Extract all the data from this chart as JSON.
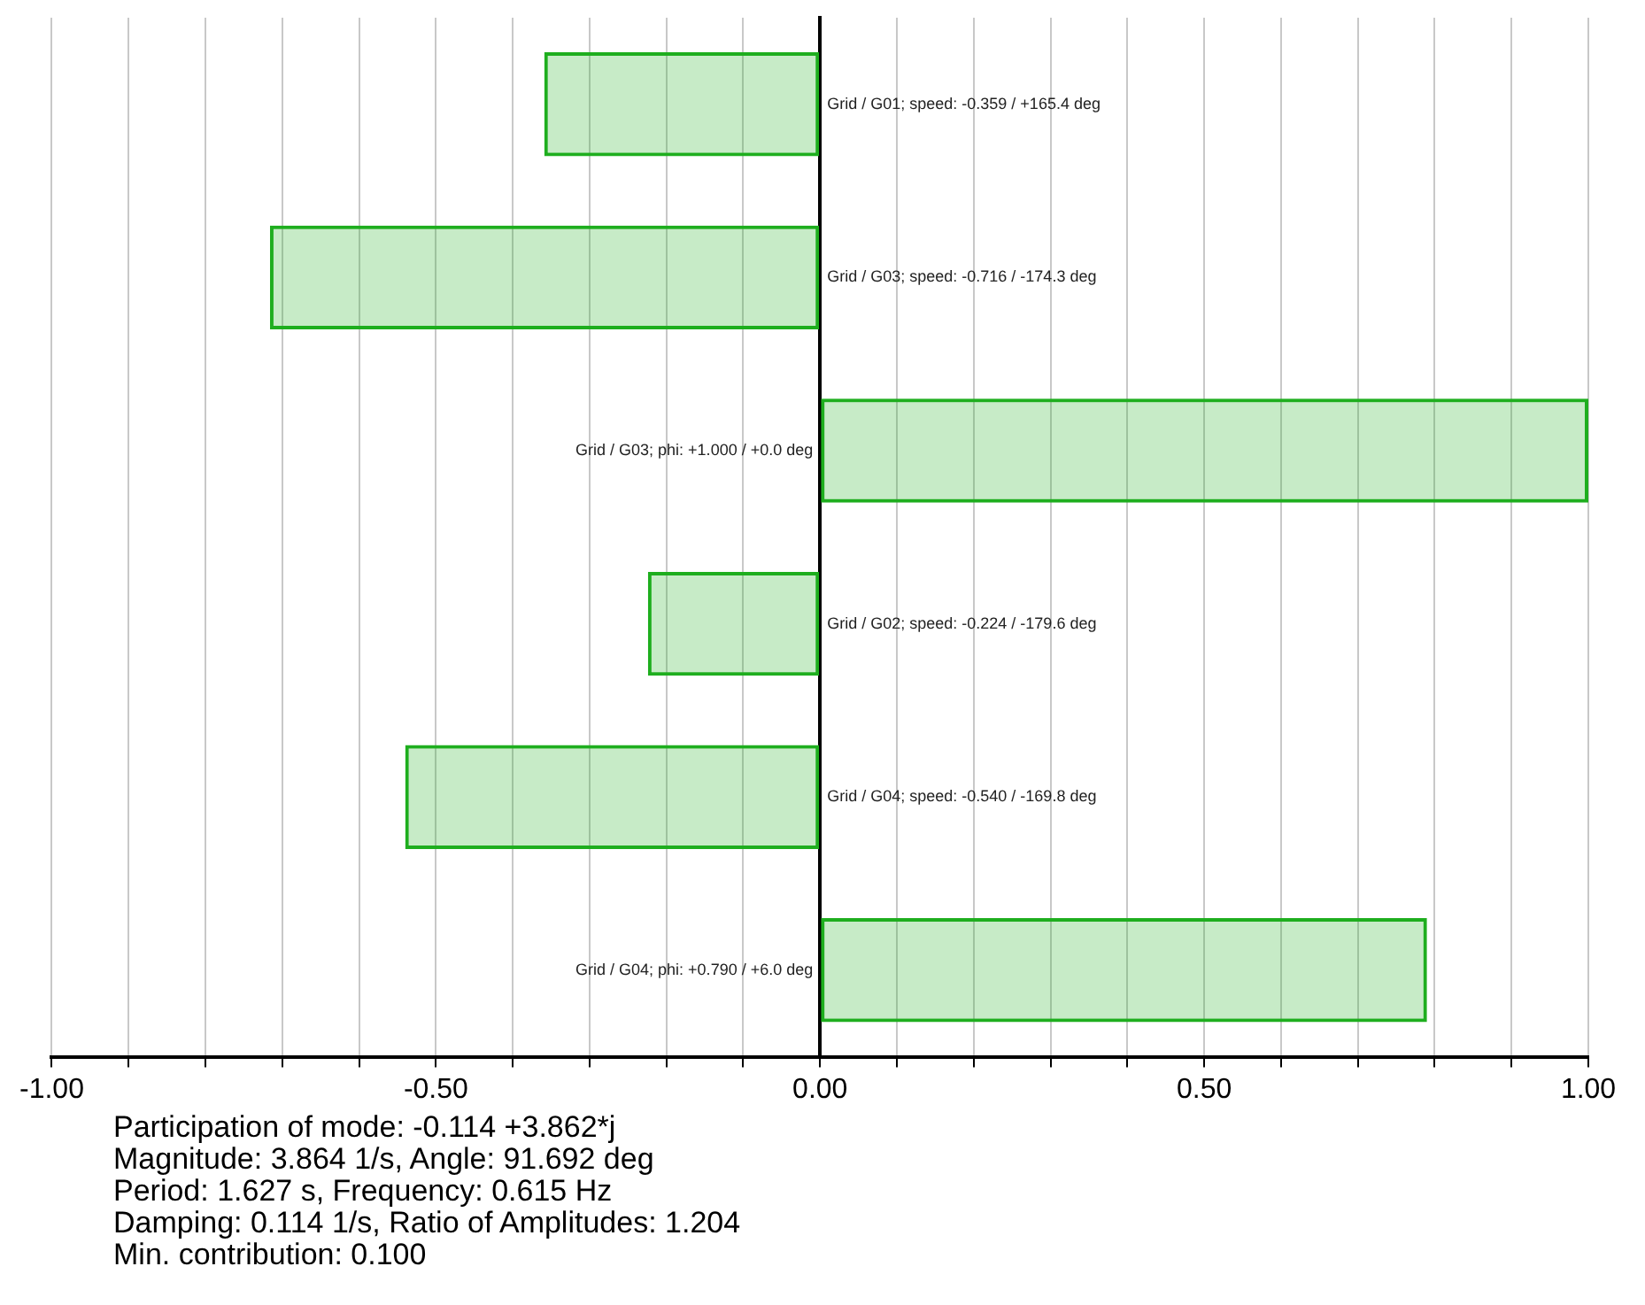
{
  "chart_data": {
    "type": "bar",
    "orientation": "horizontal",
    "categories": [
      "Grid / G01; speed: -0.359 / +165.4 deg",
      "Grid / G03; speed: -0.716 / -174.3 deg",
      "Grid / G03; phi: +1.000 / +0.0 deg",
      "Grid / G02; speed: -0.224 / -179.6 deg",
      "Grid / G04; speed: -0.540 / -169.8 deg",
      "Grid / G04; phi: +0.790 / +6.0 deg"
    ],
    "values": [
      -0.359,
      -0.716,
      1.0,
      -0.224,
      -0.54,
      0.79
    ],
    "color": "#1eae1e",
    "xlim": [
      -1,
      1
    ],
    "xticks": [
      {
        "value": -1,
        "label": "-1.00"
      },
      {
        "value": -0.9,
        "label": null
      },
      {
        "value": -0.8,
        "label": null
      },
      {
        "value": -0.7,
        "label": null
      },
      {
        "value": -0.6,
        "label": null
      },
      {
        "value": -0.5,
        "label": "-0.50"
      },
      {
        "value": -0.4,
        "label": null
      },
      {
        "value": -0.3,
        "label": null
      },
      {
        "value": -0.2,
        "label": null
      },
      {
        "value": -0.1,
        "label": null
      },
      {
        "value": 0,
        "label": "0.00"
      },
      {
        "value": 0.1,
        "label": null
      },
      {
        "value": 0.2,
        "label": null
      },
      {
        "value": 0.3,
        "label": null
      },
      {
        "value": 0.4,
        "label": null
      },
      {
        "value": 0.5,
        "label": "0.50"
      },
      {
        "value": 0.6,
        "label": null
      },
      {
        "value": 0.7,
        "label": null
      },
      {
        "value": 0.8,
        "label": null
      },
      {
        "value": 0.9,
        "label": null
      },
      {
        "value": 1,
        "label": "1.00"
      }
    ],
    "grid": "x",
    "annotations": [
      "Participation of mode: -0.114 +3.862*j",
      "Magnitude: 3.864 1/s,  Angle: 91.692 deg",
      "Period: 1.627 s,  Frequency: 0.615 Hz",
      "Damping: 0.114 1/s,  Ratio of Amplitudes: 1.204",
      "Min. contribution: 0.100"
    ]
  }
}
